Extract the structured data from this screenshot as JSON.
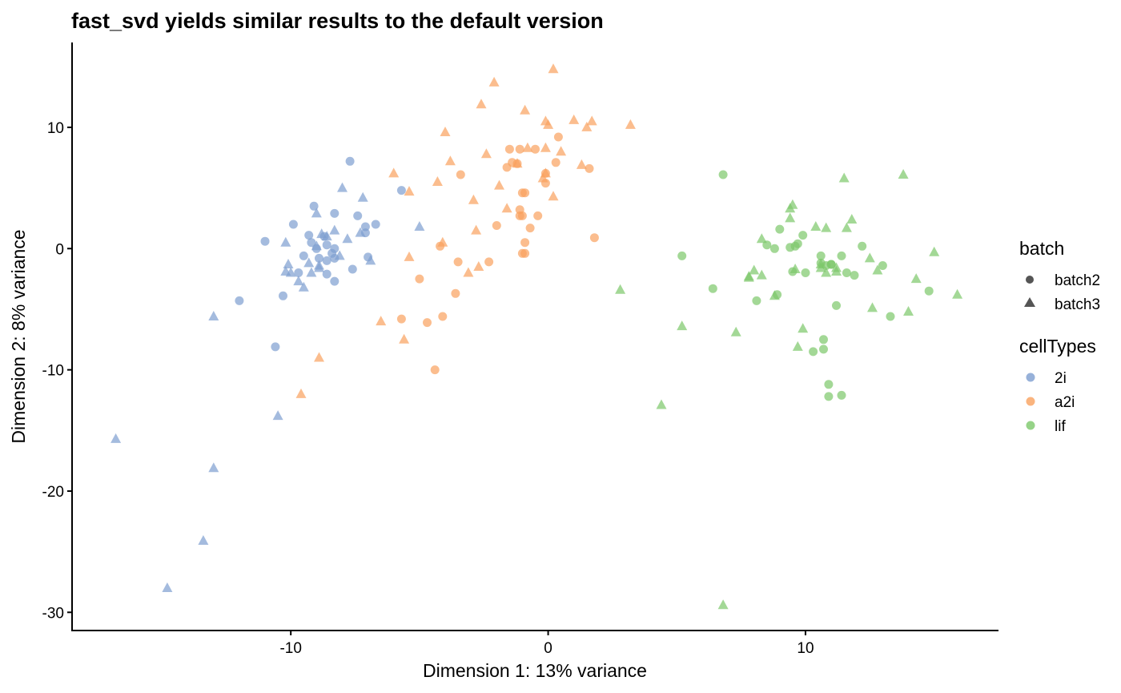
{
  "chart_data": {
    "type": "scatter",
    "title": "fast_svd yields similar results to the default version",
    "xlabel": "Dimension 1: 13% variance",
    "ylabel": "Dimension 2: 8% variance",
    "xlim": [
      -18.5,
      17.5
    ],
    "ylim": [
      -31.5,
      17.0
    ],
    "xticks": [
      -10,
      0,
      10
    ],
    "yticks": [
      10,
      0,
      -10,
      -20,
      -30
    ],
    "grid": false,
    "legend_position": "right",
    "legends": [
      {
        "title": "batch",
        "entries": [
          {
            "label": "batch2",
            "shape": "circle"
          },
          {
            "label": "batch3",
            "shape": "triangle"
          }
        ]
      },
      {
        "title": "cellTypes",
        "entries": [
          {
            "label": "2i",
            "color": "#7D9ED0"
          },
          {
            "label": "a2i",
            "color": "#F9A15E"
          },
          {
            "label": "lif",
            "color": "#7CC86A"
          }
        ]
      }
    ],
    "series": [
      {
        "cellType": "2i",
        "batch": "batch2",
        "color": "#7D9ED0",
        "shape": "circle",
        "points": [
          [
            -7.7,
            7.2
          ],
          [
            -9.1,
            3.5
          ],
          [
            -8.3,
            2.9
          ],
          [
            -7.4,
            2.7
          ],
          [
            -6.7,
            2.0
          ],
          [
            -9.9,
            2.0
          ],
          [
            -11.0,
            0.6
          ],
          [
            -9.3,
            1.1
          ],
          [
            -8.7,
            1.0
          ],
          [
            -7.1,
            1.3
          ],
          [
            -7.1,
            1.8
          ],
          [
            -9.2,
            0.5
          ],
          [
            -9.0,
            0.0
          ],
          [
            -8.6,
            0.3
          ],
          [
            -8.3,
            0.0
          ],
          [
            -8.4,
            -0.4
          ],
          [
            -9.5,
            -0.6
          ],
          [
            -8.9,
            -0.8
          ],
          [
            -8.6,
            -1.0
          ],
          [
            -8.3,
            -0.8
          ],
          [
            -7.0,
            -0.7
          ],
          [
            -9.7,
            -2.0
          ],
          [
            -8.6,
            -2.1
          ],
          [
            -7.6,
            -1.7
          ],
          [
            -8.3,
            -2.7
          ],
          [
            -10.3,
            -3.9
          ],
          [
            -12.0,
            -4.3
          ],
          [
            -10.6,
            -8.1
          ],
          [
            -5.7,
            4.8
          ]
        ]
      },
      {
        "cellType": "2i",
        "batch": "batch3",
        "color": "#7D9ED0",
        "shape": "triangle",
        "points": [
          [
            -8.0,
            5.0
          ],
          [
            -7.2,
            4.2
          ],
          [
            -9.0,
            2.9
          ],
          [
            -8.8,
            1.2
          ],
          [
            -8.6,
            1.0
          ],
          [
            -7.8,
            0.8
          ],
          [
            -7.3,
            1.3
          ],
          [
            -10.2,
            0.5
          ],
          [
            -8.3,
            1.5
          ],
          [
            -9.0,
            0.2
          ],
          [
            -8.1,
            -0.6
          ],
          [
            -6.9,
            -1.0
          ],
          [
            -10.1,
            -1.3
          ],
          [
            -9.3,
            -1.2
          ],
          [
            -8.9,
            -1.4
          ],
          [
            -10.2,
            -1.9
          ],
          [
            -10.0,
            -2.0
          ],
          [
            -9.2,
            -2.0
          ],
          [
            -8.9,
            -1.6
          ],
          [
            -9.7,
            -2.7
          ],
          [
            -9.5,
            -3.2
          ],
          [
            -5.0,
            1.8
          ],
          [
            -13.0,
            -5.6
          ],
          [
            -10.5,
            -13.8
          ],
          [
            -13.0,
            -18.1
          ],
          [
            -16.8,
            -15.7
          ],
          [
            -13.4,
            -24.1
          ],
          [
            -14.8,
            -28.0
          ]
        ]
      },
      {
        "cellType": "a2i",
        "batch": "batch2",
        "color": "#F9A15E",
        "shape": "circle",
        "points": [
          [
            -3.4,
            6.1
          ],
          [
            0.4,
            9.2
          ],
          [
            -1.5,
            8.2
          ],
          [
            -1.1,
            8.2
          ],
          [
            -0.5,
            8.2
          ],
          [
            -1.6,
            6.7
          ],
          [
            -1.4,
            7.1
          ],
          [
            -1.2,
            7.0
          ],
          [
            0.3,
            7.1
          ],
          [
            1.6,
            6.6
          ],
          [
            -0.1,
            6.2
          ],
          [
            -0.1,
            5.4
          ],
          [
            -1.0,
            4.6
          ],
          [
            -0.9,
            4.6
          ],
          [
            -1.1,
            3.2
          ],
          [
            -1.0,
            2.7
          ],
          [
            -1.1,
            2.7
          ],
          [
            -0.4,
            2.7
          ],
          [
            -2.0,
            1.9
          ],
          [
            -0.7,
            1.7
          ],
          [
            1.8,
            0.9
          ],
          [
            -4.2,
            0.2
          ],
          [
            -0.9,
            0.5
          ],
          [
            -1.0,
            -0.4
          ],
          [
            -3.5,
            -1.1
          ],
          [
            -2.3,
            -1.1
          ],
          [
            -0.9,
            -0.4
          ],
          [
            -5.0,
            -2.5
          ],
          [
            -3.6,
            -3.7
          ],
          [
            -5.7,
            -5.8
          ],
          [
            -4.1,
            -5.6
          ],
          [
            -4.7,
            -6.1
          ],
          [
            -4.4,
            -10.0
          ]
        ]
      },
      {
        "cellType": "a2i",
        "batch": "batch3",
        "color": "#F9A15E",
        "shape": "triangle",
        "points": [
          [
            0.2,
            14.8
          ],
          [
            -2.1,
            13.7
          ],
          [
            -2.6,
            11.9
          ],
          [
            -0.9,
            11.4
          ],
          [
            1.0,
            10.6
          ],
          [
            1.7,
            10.5
          ],
          [
            3.2,
            10.2
          ],
          [
            0.0,
            10.2
          ],
          [
            -4.0,
            9.6
          ],
          [
            -0.1,
            10.5
          ],
          [
            1.5,
            10.0
          ],
          [
            -0.8,
            8.3
          ],
          [
            0.5,
            8.0
          ],
          [
            -0.1,
            8.3
          ],
          [
            -2.4,
            7.8
          ],
          [
            -3.8,
            7.2
          ],
          [
            -1.2,
            7.0
          ],
          [
            1.3,
            6.9
          ],
          [
            -4.3,
            5.5
          ],
          [
            -1.9,
            5.2
          ],
          [
            -0.2,
            5.8
          ],
          [
            -0.1,
            6.2
          ],
          [
            0.2,
            4.3
          ],
          [
            -6.0,
            6.2
          ],
          [
            -5.4,
            4.7
          ],
          [
            -2.9,
            4.0
          ],
          [
            -1.6,
            3.3
          ],
          [
            -2.8,
            1.5
          ],
          [
            -4.1,
            0.5
          ],
          [
            -5.4,
            -0.7
          ],
          [
            -2.7,
            -1.5
          ],
          [
            -3.1,
            -2.0
          ],
          [
            -6.5,
            -6.0
          ],
          [
            -5.6,
            -7.5
          ],
          [
            -8.9,
            -9.0
          ],
          [
            -9.6,
            -12.0
          ]
        ]
      },
      {
        "cellType": "lif",
        "batch": "batch2",
        "color": "#7CC86A",
        "shape": "circle",
        "points": [
          [
            6.8,
            6.1
          ],
          [
            5.2,
            -0.6
          ],
          [
            6.4,
            -3.3
          ],
          [
            8.5,
            0.3
          ],
          [
            9.0,
            1.6
          ],
          [
            9.9,
            1.1
          ],
          [
            9.7,
            0.4
          ],
          [
            9.4,
            0.1
          ],
          [
            9.6,
            0.2
          ],
          [
            8.8,
            0.0
          ],
          [
            10.6,
            -0.6
          ],
          [
            10.6,
            -1.2
          ],
          [
            11.0,
            -1.3
          ],
          [
            11.0,
            -1.3
          ],
          [
            11.4,
            -0.6
          ],
          [
            12.2,
            0.2
          ],
          [
            13.0,
            -1.4
          ],
          [
            9.5,
            -1.9
          ],
          [
            10.0,
            -2.0
          ],
          [
            10.8,
            -1.4
          ],
          [
            11.9,
            -2.2
          ],
          [
            11.6,
            -2.0
          ],
          [
            8.9,
            -3.8
          ],
          [
            8.1,
            -4.3
          ],
          [
            11.2,
            -4.7
          ],
          [
            13.3,
            -5.6
          ],
          [
            14.8,
            -3.5
          ],
          [
            10.3,
            -8.5
          ],
          [
            10.7,
            -8.3
          ],
          [
            10.7,
            -7.5
          ],
          [
            10.9,
            -11.2
          ],
          [
            10.9,
            -12.2
          ],
          [
            11.4,
            -12.1
          ]
        ]
      },
      {
        "cellType": "lif",
        "batch": "batch3",
        "color": "#7CC86A",
        "shape": "triangle",
        "points": [
          [
            11.5,
            5.8
          ],
          [
            13.8,
            6.1
          ],
          [
            9.5,
            3.6
          ],
          [
            9.4,
            3.3
          ],
          [
            9.4,
            2.5
          ],
          [
            11.8,
            2.4
          ],
          [
            10.4,
            1.8
          ],
          [
            10.8,
            1.7
          ],
          [
            11.6,
            1.7
          ],
          [
            8.3,
            0.8
          ],
          [
            15.0,
            -0.3
          ],
          [
            12.5,
            -0.8
          ],
          [
            10.6,
            -1.3
          ],
          [
            9.6,
            -1.7
          ],
          [
            10.6,
            -1.6
          ],
          [
            11.2,
            -1.6
          ],
          [
            11.2,
            -1.9
          ],
          [
            10.8,
            -2.0
          ],
          [
            12.8,
            -1.8
          ],
          [
            7.8,
            -2.4
          ],
          [
            8.0,
            -1.8
          ],
          [
            8.3,
            -2.2
          ],
          [
            7.8,
            -2.3
          ],
          [
            14.3,
            -2.5
          ],
          [
            15.9,
            -3.8
          ],
          [
            2.8,
            -3.4
          ],
          [
            8.8,
            -3.9
          ],
          [
            12.6,
            -4.9
          ],
          [
            14.0,
            -5.2
          ],
          [
            5.2,
            -6.4
          ],
          [
            7.3,
            -6.9
          ],
          [
            9.9,
            -6.6
          ],
          [
            9.7,
            -8.1
          ],
          [
            4.4,
            -12.9
          ],
          [
            6.8,
            -29.4
          ]
        ]
      }
    ]
  }
}
